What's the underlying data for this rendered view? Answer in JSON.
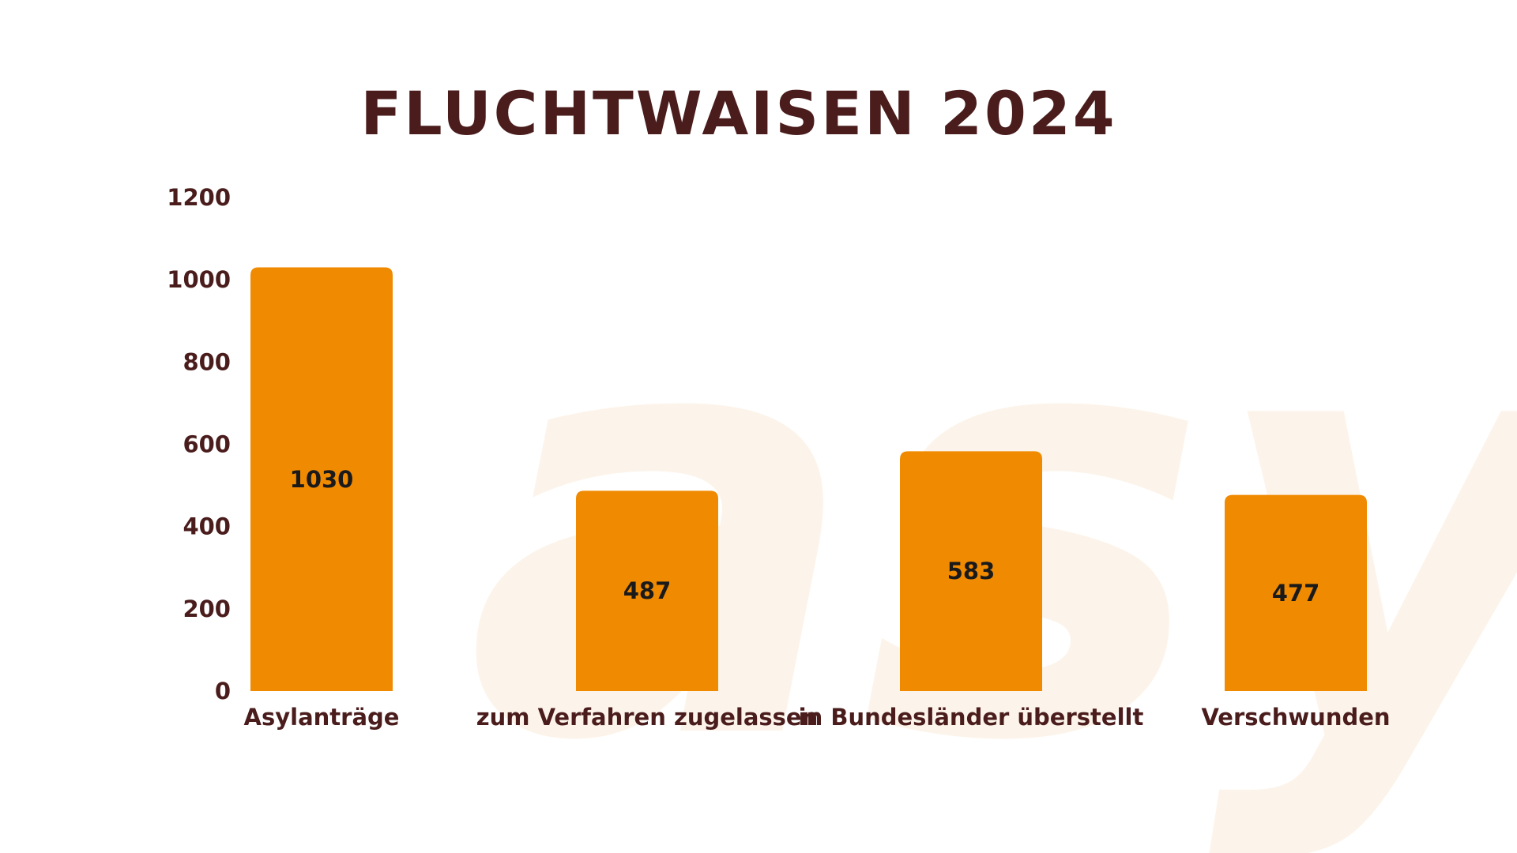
{
  "colors": {
    "bar": "#f08a00",
    "text": "#4a1c1c",
    "watermark": "#fcf4ea",
    "background": "#ffffff"
  },
  "watermark": {
    "text": "asyl"
  },
  "chart_data": {
    "type": "bar",
    "title": "FLUCHTWAISEN 2024",
    "categories": [
      "Asylanträge",
      "zum Verfahren zugelassen",
      "in Bundesländer überstellt",
      "Verschwunden"
    ],
    "values": [
      1030,
      487,
      583,
      477
    ],
    "value_labels": [
      "1030",
      "487",
      "583",
      "477"
    ],
    "yticks": [
      0,
      200,
      400,
      600,
      800,
      1000,
      1200
    ],
    "ylim": [
      0,
      1200
    ],
    "xlabel": "",
    "ylabel": "",
    "grid": false,
    "legend": "none"
  }
}
